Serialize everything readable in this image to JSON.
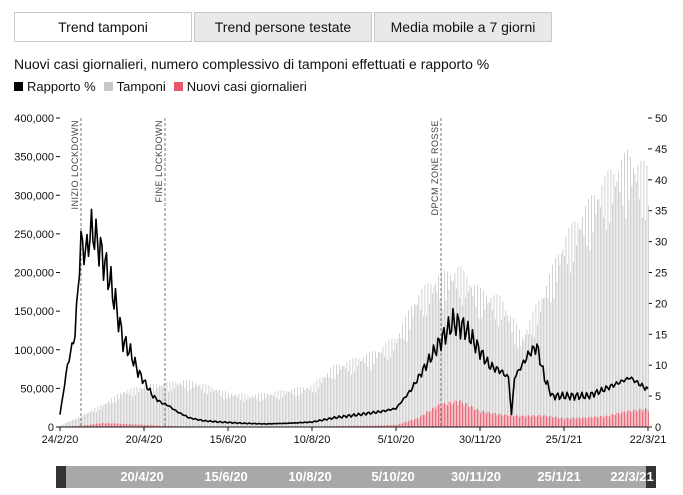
{
  "tabs": [
    {
      "label": "Trend tamponi",
      "active": true
    },
    {
      "label": "Trend persone testate",
      "active": false
    },
    {
      "label": "Media mobile a 7 giorni",
      "active": false
    }
  ],
  "colors": {
    "rapporto": "#000000",
    "tamponi": "#c8c8c8",
    "nuovi_casi": "#e8576a"
  },
  "chart_data": {
    "type": "bar",
    "title": "Nuovi casi giornalieri, numero complessivo di tamponi effettuati e rapporto %",
    "legend": [
      "Rapporto %",
      "Tamponi",
      "Nuovi casi giornalieri"
    ],
    "legend_placement": "top-left",
    "x_range": [
      "2020-02-24",
      "2021-03-22"
    ],
    "x_tick_labels": [
      "24/2/20",
      "20/4/20",
      "15/6/20",
      "10/8/20",
      "5/10/20",
      "30/11/20",
      "25/1/21",
      "22/3/21"
    ],
    "y_left": {
      "min": 0,
      "max": 400000,
      "ticks": [
        "0",
        "50,000",
        "100,000",
        "150,000",
        "200,000",
        "250,000",
        "300,000",
        "350,000",
        "400,000"
      ]
    },
    "y_right": {
      "min": 0,
      "max": 50,
      "ticks": [
        "0",
        "5",
        "10",
        "15",
        "20",
        "25",
        "30",
        "35",
        "40",
        "45",
        "50"
      ]
    },
    "annotations": [
      {
        "date": "2020-03-09",
        "label": "INIZIO LOCKDOWN"
      },
      {
        "date": "2020-05-04",
        "label": "FINE LOCKDOWN"
      },
      {
        "date": "2020-11-04",
        "label": "DPCM ZONE ROSSE"
      }
    ],
    "series": [
      {
        "name": "Tamponi",
        "axis": "left",
        "dates": [
          "2020-02-24",
          "2020-03-09",
          "2020-03-23",
          "2020-04-06",
          "2020-04-20",
          "2020-05-04",
          "2020-05-18",
          "2020-06-01",
          "2020-06-15",
          "2020-06-29",
          "2020-07-13",
          "2020-07-27",
          "2020-08-10",
          "2020-08-24",
          "2020-09-07",
          "2020-09-21",
          "2020-10-05",
          "2020-10-19",
          "2020-11-02",
          "2020-11-16",
          "2020-11-30",
          "2020-12-14",
          "2020-12-28",
          "2021-01-11",
          "2021-01-25",
          "2021-02-08",
          "2021-02-22",
          "2021-03-08",
          "2021-03-22"
        ],
        "values": [
          2000,
          15000,
          30000,
          48000,
          55000,
          58000,
          62000,
          55000,
          45000,
          42000,
          45000,
          50000,
          55000,
          80000,
          90000,
          100000,
          120000,
          175000,
          200000,
          210000,
          180000,
          170000,
          120000,
          180000,
          250000,
          290000,
          330000,
          360000,
          340000
        ]
      },
      {
        "name": "Nuovi casi giornalieri",
        "axis": "left",
        "dates": [
          "2020-02-24",
          "2020-03-09",
          "2020-03-23",
          "2020-04-06",
          "2020-04-20",
          "2020-05-04",
          "2020-05-18",
          "2020-06-01",
          "2020-06-15",
          "2020-06-29",
          "2020-07-13",
          "2020-07-27",
          "2020-08-10",
          "2020-08-24",
          "2020-09-07",
          "2020-09-21",
          "2020-10-05",
          "2020-10-19",
          "2020-11-02",
          "2020-11-16",
          "2020-11-30",
          "2020-12-14",
          "2020-12-28",
          "2021-01-11",
          "2021-01-25",
          "2021-02-08",
          "2021-02-22",
          "2021-03-08",
          "2021-03-22"
        ],
        "values": [
          200,
          1800,
          5500,
          4300,
          3000,
          1500,
          800,
          400,
          300,
          200,
          200,
          250,
          400,
          1200,
          1500,
          1800,
          3000,
          12000,
          30000,
          36000,
          22000,
          17000,
          15000,
          16000,
          12000,
          13000,
          15000,
          22000,
          25000
        ]
      },
      {
        "name": "Rapporto %",
        "axis": "right",
        "dates": [
          "2020-02-24",
          "2020-02-29",
          "2020-03-05",
          "2020-03-09",
          "2020-03-12",
          "2020-03-16",
          "2020-03-20",
          "2020-03-24",
          "2020-03-28",
          "2020-04-01",
          "2020-04-06",
          "2020-04-11",
          "2020-04-16",
          "2020-04-21",
          "2020-04-26",
          "2020-05-01",
          "2020-05-06",
          "2020-05-12",
          "2020-05-20",
          "2020-05-30",
          "2020-06-10",
          "2020-06-25",
          "2020-07-10",
          "2020-07-25",
          "2020-08-10",
          "2020-08-25",
          "2020-09-10",
          "2020-09-25",
          "2020-10-05",
          "2020-10-15",
          "2020-10-25",
          "2020-11-04",
          "2020-11-12",
          "2020-11-20",
          "2020-11-28",
          "2020-12-06",
          "2020-12-14",
          "2020-12-19",
          "2020-12-21",
          "2020-12-23",
          "2020-12-28",
          "2021-01-02",
          "2021-01-07",
          "2021-01-12",
          "2021-01-17",
          "2021-01-22",
          "2021-02-01",
          "2021-02-10",
          "2021-02-20",
          "2021-03-01",
          "2021-03-10",
          "2021-03-16",
          "2021-03-22"
        ],
        "values": [
          2,
          10,
          15,
          30,
          28,
          32,
          30,
          27,
          24,
          20,
          14,
          12,
          9,
          7,
          5,
          4,
          3.5,
          2.5,
          1.5,
          1,
          0.8,
          0.6,
          0.5,
          0.6,
          0.8,
          1.5,
          2,
          2.5,
          3,
          6,
          10,
          14,
          17,
          16,
          13,
          10,
          9,
          8,
          2,
          8,
          10,
          12,
          13,
          8,
          5,
          5,
          5,
          5,
          6,
          7,
          8,
          7,
          6
        ]
      }
    ]
  },
  "scroller": {
    "labels": [
      "20/4/20",
      "15/6/20",
      "10/8/20",
      "5/10/20",
      "30/11/20",
      "25/1/21",
      "22/3/21"
    ]
  }
}
